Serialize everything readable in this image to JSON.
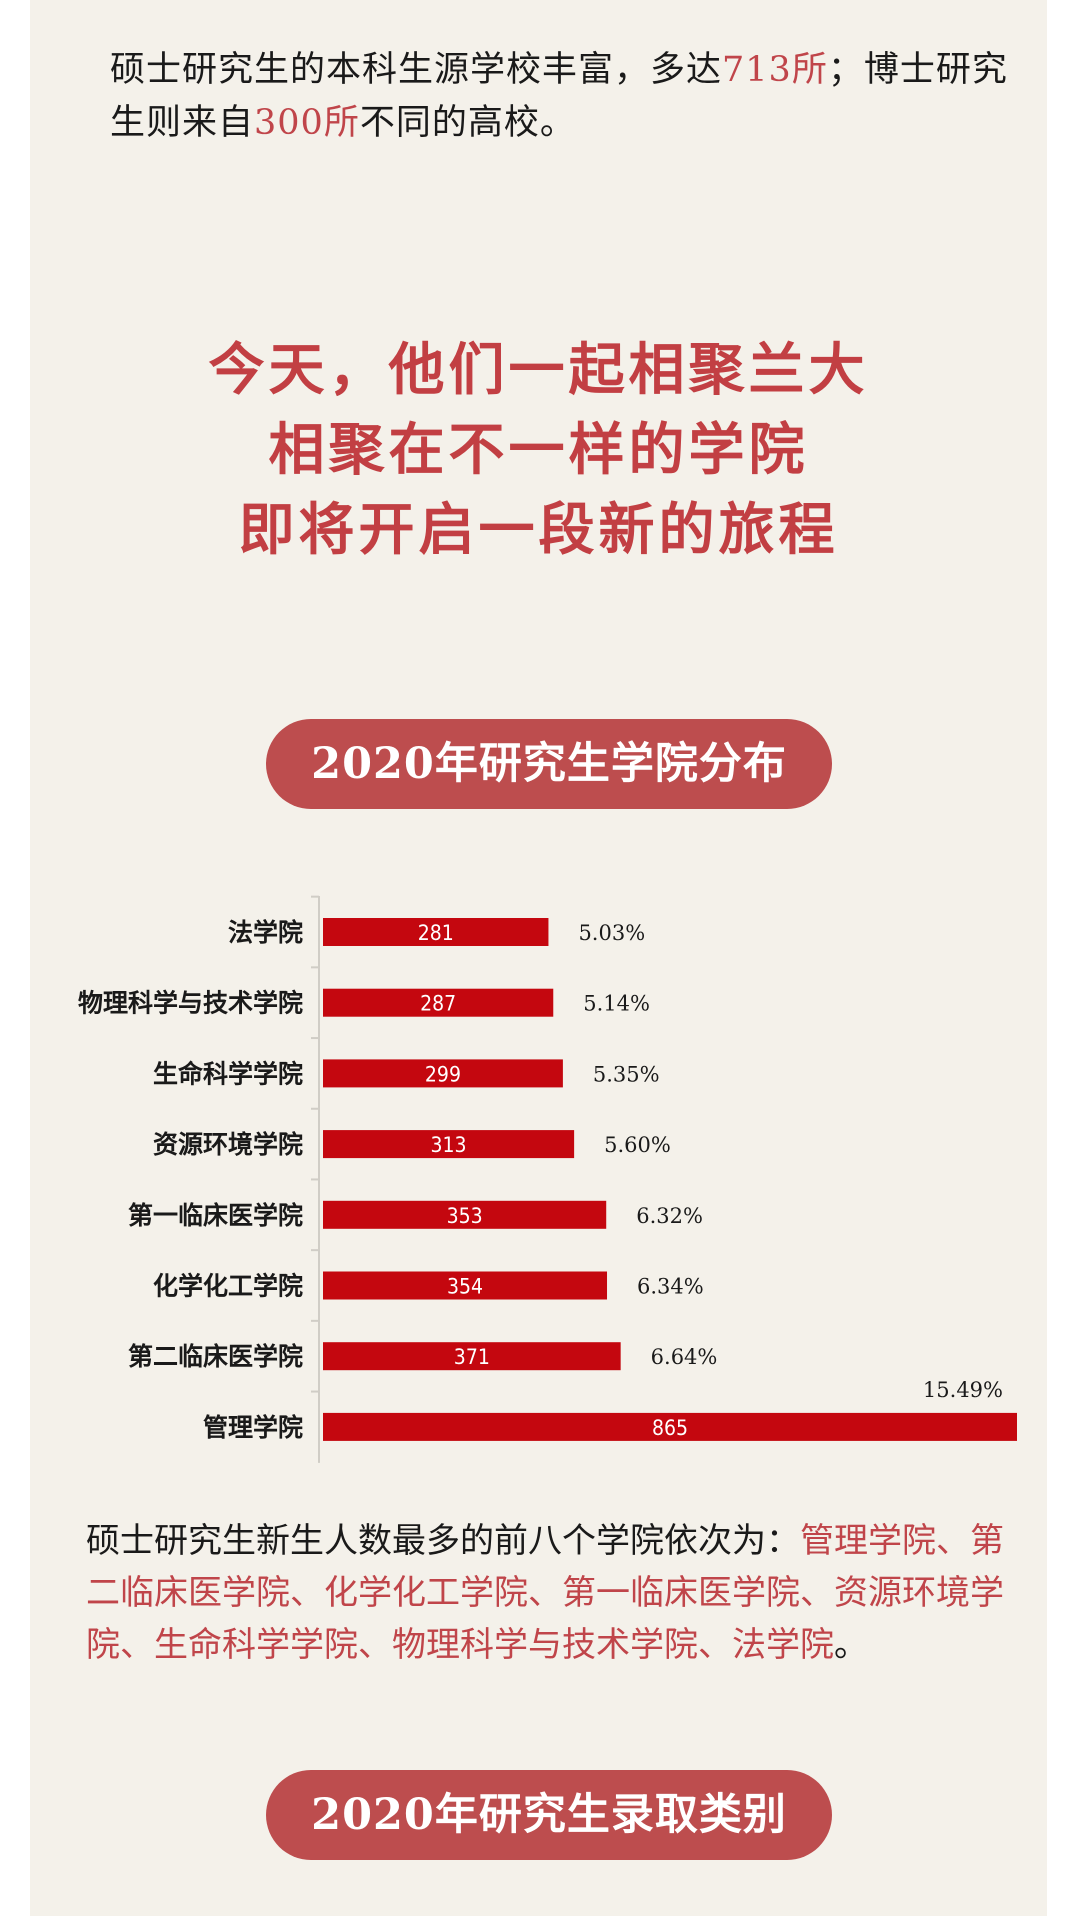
{
  "intro": {
    "part1": "硕士研究生的本科生源学校丰富，多达",
    "count1": "713所",
    "part2": "；博士研究生则来自",
    "count2": "300所",
    "part3": "不同的高校。"
  },
  "headline": {
    "line1": "今天，他们一起相聚兰大",
    "line2": "相聚在不一样的学院",
    "line3": "即将开启一段新的旅程"
  },
  "section1_title": "2020年研究生学院分布",
  "chart_data": {
    "type": "bar",
    "orientation": "horizontal",
    "categories": [
      "法学院",
      "物理科学与技术学院",
      "生命科学学院",
      "资源环境学院",
      "第一临床医学院",
      "化学化工学院",
      "第二临床医学院",
      "管理学院"
    ],
    "values": [
      281,
      287,
      299,
      313,
      353,
      354,
      371,
      865
    ],
    "percent_labels": [
      "5.03%",
      "5.14%",
      "5.35%",
      "5.60%",
      "6.32%",
      "6.34%",
      "6.64%",
      "15.49%"
    ],
    "xlim": [
      0,
      865
    ],
    "bar_color": "#c4070f",
    "grid": false,
    "legend": "none"
  },
  "outro": {
    "lead": "硕士研究生新生人数最多的前八个学院依次为：",
    "list": "管理学院、第二临床医学院、化学化工学院、第一临床医学院、资源环境学院、生命科学学院、物理科学与技术学院、法学院",
    "end": "。"
  },
  "section2_title": "2020年研究生录取类别",
  "colors": {
    "background": "#f4f1ea",
    "accent": "#c0454a",
    "pill": "#bd4d4e",
    "bar": "#c4070f"
  }
}
